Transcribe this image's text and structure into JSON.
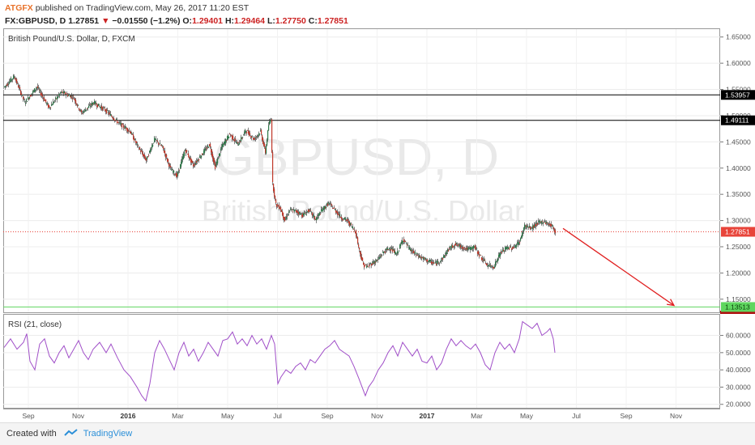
{
  "header": {
    "author": "ATGFX",
    "published": "published on TradingView.com, May 26, 2017 11:20 EST",
    "symbol": "FX:GBPUSD, D",
    "last": "1.27851",
    "change_arrow": "▼",
    "change": "−0.01550 (−1.2%)",
    "o_label": "O:",
    "o_value": "1.29401",
    "h_label": "H:",
    "h_value": "1.29464",
    "l_label": "L:",
    "l_value": "1.27750",
    "c_label": "C:",
    "c_value": "1.27851"
  },
  "footer": {
    "created_with": "Created with",
    "brand": "TradingView"
  },
  "colors": {
    "up": "#2f7a4a",
    "down": "#c0392b",
    "rsi": "#a04fc8",
    "green_line": "#5fd65f",
    "arrow": "#e02020",
    "current_price": "#e8443a"
  },
  "chart_data": [
    {
      "type": "candlestick",
      "title": "British Pound/U.S. Dollar, D, FXCM",
      "watermark": "GBPUSD, D",
      "watermark_sub": "British Pound/U.S. Dollar",
      "ylim": [
        1.125,
        1.665
      ],
      "y_ticks": [
        "1.65000",
        "1.60000",
        "1.55000",
        "1.50000",
        "1.45000",
        "1.40000",
        "1.35000",
        "1.30000",
        "1.25000",
        "1.20000",
        "1.15000"
      ],
      "x_ticks": [
        {
          "label": "Sep",
          "bold": false
        },
        {
          "label": "Nov",
          "bold": false
        },
        {
          "label": "2016",
          "bold": true
        },
        {
          "label": "Mar",
          "bold": false
        },
        {
          "label": "May",
          "bold": false
        },
        {
          "label": "Jul",
          "bold": false
        },
        {
          "label": "Sep",
          "bold": false
        },
        {
          "label": "Nov",
          "bold": false
        },
        {
          "label": "2017",
          "bold": true
        },
        {
          "label": "Mar",
          "bold": false
        },
        {
          "label": "May",
          "bold": false
        },
        {
          "label": "Jul",
          "bold": false
        },
        {
          "label": "Sep",
          "bold": false
        },
        {
          "label": "Nov",
          "bold": false
        }
      ],
      "path_points": [
        [
          0,
          1.555
        ],
        [
          12,
          1.575
        ],
        [
          25,
          1.525
        ],
        [
          40,
          1.555
        ],
        [
          55,
          1.515
        ],
        [
          70,
          1.545
        ],
        [
          85,
          1.535
        ],
        [
          95,
          1.505
        ],
        [
          110,
          1.525
        ],
        [
          125,
          1.51
        ],
        [
          140,
          1.487
        ],
        [
          155,
          1.47
        ],
        [
          165,
          1.44
        ],
        [
          175,
          1.415
        ],
        [
          185,
          1.455
        ],
        [
          195,
          1.44
        ],
        [
          205,
          1.398
        ],
        [
          213,
          1.385
        ],
        [
          223,
          1.435
        ],
        [
          233,
          1.405
        ],
        [
          243,
          1.425
        ],
        [
          253,
          1.445
        ],
        [
          260,
          1.402
        ],
        [
          268,
          1.44
        ],
        [
          278,
          1.465
        ],
        [
          288,
          1.445
        ],
        [
          298,
          1.472
        ],
        [
          308,
          1.455
        ],
        [
          316,
          1.47
        ],
        [
          322,
          1.43
        ],
        [
          326,
          1.482
        ],
        [
          329,
          1.495
        ],
        [
          331,
          1.37
        ],
        [
          335,
          1.33
        ],
        [
          340,
          1.325
        ],
        [
          346,
          1.3
        ],
        [
          352,
          1.32
        ],
        [
          360,
          1.318
        ],
        [
          368,
          1.31
        ],
        [
          376,
          1.32
        ],
        [
          384,
          1.302
        ],
        [
          392,
          1.32
        ],
        [
          400,
          1.333
        ],
        [
          408,
          1.32
        ],
        [
          416,
          1.305
        ],
        [
          423,
          1.3
        ],
        [
          428,
          1.29
        ],
        [
          433,
          1.28
        ],
        [
          438,
          1.243
        ],
        [
          443,
          1.215
        ],
        [
          448,
          1.212
        ],
        [
          453,
          1.218
        ],
        [
          460,
          1.224
        ],
        [
          468,
          1.24
        ],
        [
          476,
          1.248
        ],
        [
          484,
          1.235
        ],
        [
          492,
          1.265
        ],
        [
          500,
          1.245
        ],
        [
          508,
          1.235
        ],
        [
          516,
          1.228
        ],
        [
          524,
          1.222
        ],
        [
          532,
          1.218
        ],
        [
          540,
          1.226
        ],
        [
          548,
          1.245
        ],
        [
          556,
          1.255
        ],
        [
          564,
          1.25
        ],
        [
          572,
          1.245
        ],
        [
          580,
          1.25
        ],
        [
          588,
          1.23
        ],
        [
          596,
          1.215
        ],
        [
          604,
          1.212
        ],
        [
          612,
          1.238
        ],
        [
          620,
          1.248
        ],
        [
          628,
          1.248
        ],
        [
          636,
          1.26
        ],
        [
          642,
          1.29
        ],
        [
          650,
          1.285
        ],
        [
          658,
          1.295
        ],
        [
          666,
          1.298
        ],
        [
          672,
          1.293
        ],
        [
          676,
          1.29
        ],
        [
          680,
          1.278
        ]
      ],
      "horizontal_levels": [
        {
          "value": 1.53957,
          "label": "1.53957",
          "color": "#000000"
        },
        {
          "value": 1.49111,
          "label": "1.49111",
          "color": "#000000"
        },
        {
          "value": 1.13513,
          "label": "1.13513",
          "color": "#5fd65f"
        }
      ],
      "current_price": {
        "value": 1.27851,
        "label": "1.27851"
      },
      "projection": {
        "from": [
          695,
          1.285
        ],
        "to": [
          832,
          1.138
        ]
      }
    },
    {
      "type": "line",
      "title": "RSI (21, close)",
      "ylim": [
        18,
        72
      ],
      "y_ticks": [
        "60.0000",
        "50.0000",
        "40.0000",
        "30.0000",
        "20.0000"
      ],
      "series": [
        {
          "points": [
            [
              0,
              53
            ],
            [
              8,
              58
            ],
            [
              16,
              52
            ],
            [
              24,
              56
            ],
            [
              28,
              61
            ],
            [
              32,
              45
            ],
            [
              38,
              40
            ],
            [
              44,
              55
            ],
            [
              50,
              58
            ],
            [
              56,
              48
            ],
            [
              62,
              44
            ],
            [
              68,
              50
            ],
            [
              74,
              54
            ],
            [
              80,
              47
            ],
            [
              86,
              52
            ],
            [
              92,
              57
            ],
            [
              98,
              50
            ],
            [
              104,
              46
            ],
            [
              110,
              52
            ],
            [
              118,
              56
            ],
            [
              126,
              50
            ],
            [
              132,
              55
            ],
            [
              140,
              47
            ],
            [
              148,
              40
            ],
            [
              156,
              36
            ],
            [
              164,
              30
            ],
            [
              170,
              25
            ],
            [
              175,
              22
            ],
            [
              180,
              32
            ],
            [
              186,
              50
            ],
            [
              192,
              57
            ],
            [
              198,
              52
            ],
            [
              204,
              46
            ],
            [
              210,
              40
            ],
            [
              216,
              50
            ],
            [
              222,
              56
            ],
            [
              228,
              48
            ],
            [
              234,
              52
            ],
            [
              240,
              45
            ],
            [
              246,
              50
            ],
            [
              252,
              56
            ],
            [
              258,
              52
            ],
            [
              264,
              48
            ],
            [
              270,
              57
            ],
            [
              276,
              58
            ],
            [
              282,
              62
            ],
            [
              288,
              55
            ],
            [
              294,
              58
            ],
            [
              300,
              54
            ],
            [
              306,
              60
            ],
            [
              312,
              55
            ],
            [
              318,
              58
            ],
            [
              324,
              52
            ],
            [
              330,
              60
            ],
            [
              334,
              55
            ],
            [
              338,
              32
            ],
            [
              342,
              36
            ],
            [
              348,
              40
            ],
            [
              354,
              38
            ],
            [
              360,
              42
            ],
            [
              366,
              44
            ],
            [
              372,
              40
            ],
            [
              378,
              46
            ],
            [
              384,
              44
            ],
            [
              390,
              48
            ],
            [
              396,
              52
            ],
            [
              402,
              54
            ],
            [
              408,
              57
            ],
            [
              414,
              52
            ],
            [
              420,
              50
            ],
            [
              426,
              48
            ],
            [
              432,
              42
            ],
            [
              438,
              35
            ],
            [
              442,
              30
            ],
            [
              446,
              25
            ],
            [
              450,
              30
            ],
            [
              456,
              34
            ],
            [
              462,
              40
            ],
            [
              468,
              44
            ],
            [
              474,
              50
            ],
            [
              480,
              54
            ],
            [
              486,
              48
            ],
            [
              492,
              56
            ],
            [
              498,
              52
            ],
            [
              504,
              48
            ],
            [
              510,
              52
            ],
            [
              516,
              45
            ],
            [
              522,
              44
            ],
            [
              528,
              48
            ],
            [
              534,
              40
            ],
            [
              540,
              44
            ],
            [
              546,
              52
            ],
            [
              552,
              58
            ],
            [
              558,
              54
            ],
            [
              564,
              57
            ],
            [
              570,
              54
            ],
            [
              576,
              52
            ],
            [
              582,
              55
            ],
            [
              588,
              50
            ],
            [
              594,
              43
            ],
            [
              600,
              40
            ],
            [
              606,
              50
            ],
            [
              612,
              56
            ],
            [
              618,
              52
            ],
            [
              624,
              55
            ],
            [
              630,
              50
            ],
            [
              636,
              58
            ],
            [
              640,
              68
            ],
            [
              646,
              66
            ],
            [
              652,
              64
            ],
            [
              658,
              67
            ],
            [
              664,
              60
            ],
            [
              670,
              62
            ],
            [
              674,
              64
            ],
            [
              678,
              58
            ],
            [
              680,
              50
            ]
          ]
        }
      ]
    }
  ]
}
